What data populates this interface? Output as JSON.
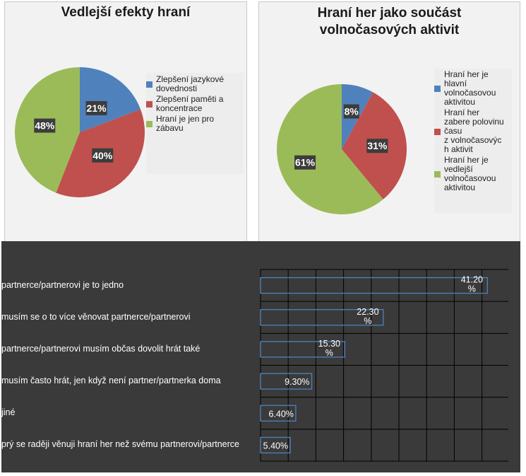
{
  "chart_data": [
    {
      "type": "pie",
      "title": "Vedlejší efekty hraní",
      "slices": [
        {
          "label": "Zlepšení jazykové dovednosti",
          "value": 21,
          "value_label": "21%",
          "color": "#4f81bd"
        },
        {
          "label": "Zlepšení paměti a koncentrace",
          "value": 40,
          "value_label": "40%",
          "color": "#c0504d"
        },
        {
          "label": "Hraní je jen pro zábavu",
          "value": 48,
          "value_label": "48%",
          "color": "#9bbb59"
        }
      ],
      "legend_lines": [
        [
          "Zlepšení jazykové",
          "dovednosti"
        ],
        [
          "Zlepšení paměti a",
          "koncentrace"
        ],
        [
          "Hraní je jen pro",
          "zábavu"
        ]
      ],
      "legend_position": "right"
    },
    {
      "type": "pie",
      "title_lines": [
        "Hraní her jako součást",
        "volnočasových aktivit"
      ],
      "slices": [
        {
          "label": "Hraní her je hlavní volnočasovou aktivitou",
          "value": 8,
          "value_label": "8%",
          "color": "#4f81bd"
        },
        {
          "label": "Hraní her zabere polovinu času z volnočasových aktivit",
          "value": 31,
          "value_label": "31%",
          "color": "#c0504d"
        },
        {
          "label": "Hraní her je vedlejší volnočasovou aktivitou",
          "value": 61,
          "value_label": "61%",
          "color": "#9bbb59"
        }
      ],
      "legend_lines": [
        [
          "Hraní her je",
          "hlavní",
          "volnočasovou",
          "aktivitou"
        ],
        [
          "Hraní her",
          "zabere polovinu",
          "času",
          "z volnočasovýc",
          "h aktivit"
        ],
        [
          "Hraní her je",
          "vedlejší",
          "volnočasovou",
          "aktivitou"
        ]
      ],
      "legend_position": "right"
    },
    {
      "type": "bar",
      "orientation": "horizontal",
      "categories": [
        "partnerce/partnerovi je to jedno",
        "musím se o to více věnovat partnerce/partnerovi",
        "partnerce/partnerovi musím občas dovolit hrát také",
        "musím často hrát, jen když není partner/partnerka doma",
        "jiné",
        "prý se raději věnuji hraní her než svému partnerovi/partnerce"
      ],
      "values": [
        41.2,
        22.3,
        15.3,
        9.3,
        6.4,
        5.4
      ],
      "value_labels": [
        [
          "41.20",
          "%"
        ],
        [
          "22.30",
          "%"
        ],
        [
          "15.30",
          "%"
        ],
        [
          "9.30%"
        ],
        [
          "6.40%"
        ],
        [
          "5.40%"
        ]
      ],
      "xlim": [
        0,
        45
      ],
      "grid": true,
      "bar_outline_color": "#4f81bd",
      "background": "#3a3a3a"
    }
  ]
}
